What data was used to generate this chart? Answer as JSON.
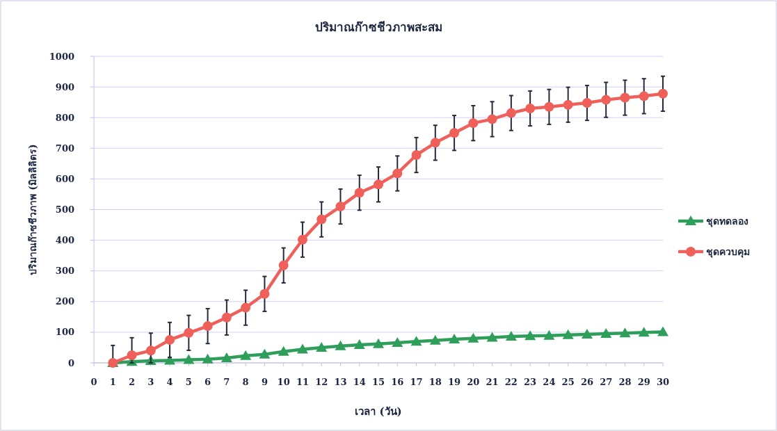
{
  "chart_data": {
    "type": "line",
    "title": "ปริมาณก๊าซชีวภาพสะสม",
    "xlabel": "เวลา (วัน)",
    "ylabel": "ปริมาณก๊าซชีวภาพ (มิลลิลิตร)",
    "x": [
      1,
      2,
      3,
      4,
      5,
      6,
      7,
      8,
      9,
      10,
      11,
      12,
      13,
      14,
      15,
      16,
      17,
      18,
      19,
      20,
      21,
      22,
      23,
      24,
      25,
      26,
      27,
      28,
      29,
      30
    ],
    "xlim": [
      0,
      30
    ],
    "xticks": [
      0,
      1,
      2,
      3,
      4,
      5,
      6,
      7,
      8,
      9,
      10,
      11,
      12,
      13,
      14,
      15,
      16,
      17,
      18,
      19,
      20,
      21,
      22,
      23,
      24,
      25,
      26,
      27,
      28,
      29,
      30
    ],
    "ylim": [
      0,
      1000
    ],
    "yticks": [
      0,
      100,
      200,
      300,
      400,
      500,
      600,
      700,
      800,
      900,
      1000
    ],
    "grid": "y",
    "legend": "right",
    "series": [
      {
        "name": "ชุดทดลอง",
        "color": "#2e9e5a",
        "marker": "triangle",
        "values": [
          0,
          4,
          7,
          8,
          10,
          12,
          16,
          23,
          28,
          37,
          44,
          50,
          55,
          59,
          62,
          66,
          70,
          73,
          77,
          80,
          83,
          86,
          88,
          89,
          91,
          93,
          95,
          97,
          99,
          101
        ]
      },
      {
        "name": "ชุดควบคุม",
        "color": "#f0605a",
        "marker": "circle",
        "values": [
          0,
          25,
          40,
          75,
          98,
          120,
          148,
          180,
          225,
          318,
          402,
          468,
          510,
          555,
          582,
          618,
          678,
          718,
          750,
          782,
          795,
          815,
          830,
          835,
          842,
          848,
          858,
          865,
          870,
          878
        ],
        "errors": [
          [
            0,
            57
          ],
          [
            0,
            82
          ],
          [
            0,
            97
          ],
          57,
          57,
          57,
          57,
          57,
          57,
          57,
          57,
          57,
          57,
          57,
          57,
          57,
          57,
          57,
          57,
          57,
          57,
          57,
          57,
          57,
          57,
          57,
          57,
          57,
          57,
          57
        ]
      }
    ]
  }
}
